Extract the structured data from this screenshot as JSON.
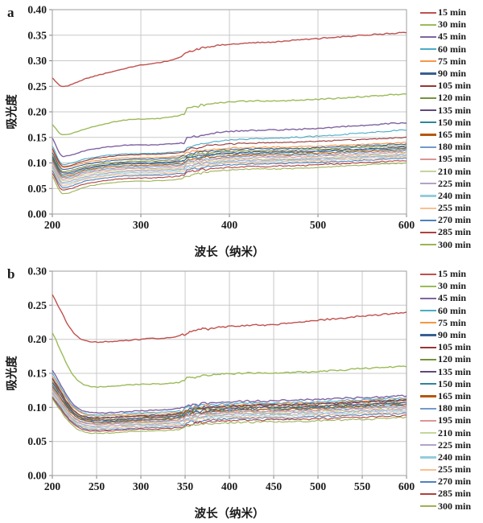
{
  "chart_data": [
    {
      "panel_label": "a",
      "type": "line",
      "xlabel": "波长（纳米）",
      "ylabel": "吸光度",
      "xlim": [
        200,
        600
      ],
      "xticks": [
        200,
        300,
        400,
        500,
        600
      ],
      "ylim": [
        0,
        0.4
      ],
      "ytick_step": 0.05,
      "grid": true,
      "legend_position": "right",
      "anchor_x": [
        200,
        212,
        240,
        290,
        349,
        352,
        460,
        600
      ],
      "series": [
        {
          "name": "15 min",
          "color": "#C0504D",
          "values": [
            0.266,
            0.25,
            0.266,
            0.288,
            0.311,
            0.315,
            0.338,
            0.356
          ]
        },
        {
          "name": "30 min",
          "color": "#9BBB59",
          "values": [
            0.176,
            0.155,
            0.168,
            0.185,
            0.196,
            0.207,
            0.222,
            0.235
          ]
        },
        {
          "name": "45 min",
          "color": "#8064A2",
          "values": [
            0.149,
            0.113,
            0.125,
            0.135,
            0.14,
            0.148,
            0.165,
            0.179
          ]
        },
        {
          "name": "60 min",
          "color": "#4BACC6",
          "values": [
            0.133,
            0.097,
            0.109,
            0.118,
            0.124,
            0.13,
            0.149,
            0.165
          ]
        },
        {
          "name": "75 min",
          "color": "#F79646",
          "values": [
            0.125,
            0.091,
            0.102,
            0.11,
            0.115,
            0.12,
            0.131,
            0.14
          ]
        },
        {
          "name": "90 min",
          "color": "#376092",
          "values": [
            0.12,
            0.087,
            0.098,
            0.107,
            0.112,
            0.117,
            0.128,
            0.137
          ]
        },
        {
          "name": "105 min",
          "color": "#953735",
          "values": [
            0.128,
            0.093,
            0.106,
            0.116,
            0.122,
            0.127,
            0.14,
            0.15
          ]
        },
        {
          "name": "120 min",
          "color": "#76923C",
          "values": [
            0.115,
            0.083,
            0.094,
            0.103,
            0.108,
            0.113,
            0.125,
            0.134
          ]
        },
        {
          "name": "135 min",
          "color": "#5F497A",
          "values": [
            0.112,
            0.08,
            0.091,
            0.1,
            0.105,
            0.11,
            0.122,
            0.131
          ]
        },
        {
          "name": "150 min",
          "color": "#31849B",
          "values": [
            0.109,
            0.077,
            0.089,
            0.098,
            0.103,
            0.108,
            0.12,
            0.129
          ]
        },
        {
          "name": "165 min",
          "color": "#B65708",
          "values": [
            0.106,
            0.074,
            0.086,
            0.095,
            0.1,
            0.105,
            0.117,
            0.126
          ]
        },
        {
          "name": "180 min",
          "color": "#729ACA",
          "values": [
            0.103,
            0.071,
            0.083,
            0.092,
            0.097,
            0.102,
            0.114,
            0.124
          ]
        },
        {
          "name": "195 min",
          "color": "#D99694",
          "values": [
            0.1,
            0.068,
            0.08,
            0.089,
            0.094,
            0.099,
            0.111,
            0.121
          ]
        },
        {
          "name": "210 min",
          "color": "#C3D69B",
          "values": [
            0.097,
            0.065,
            0.077,
            0.086,
            0.091,
            0.096,
            0.108,
            0.118
          ]
        },
        {
          "name": "225 min",
          "color": "#B3A2C7",
          "values": [
            0.094,
            0.062,
            0.074,
            0.084,
            0.089,
            0.094,
            0.106,
            0.116
          ]
        },
        {
          "name": "240 min",
          "color": "#93CDDD",
          "values": [
            0.091,
            0.059,
            0.071,
            0.081,
            0.086,
            0.091,
            0.104,
            0.114
          ]
        },
        {
          "name": "255 min",
          "color": "#FAC090",
          "values": [
            0.088,
            0.056,
            0.069,
            0.078,
            0.084,
            0.089,
            0.102,
            0.112
          ]
        },
        {
          "name": "270 min",
          "color": "#4F81BD",
          "values": [
            0.085,
            0.052,
            0.065,
            0.075,
            0.081,
            0.086,
            0.099,
            0.109
          ]
        },
        {
          "name": "285 min",
          "color": "#B0413E",
          "values": [
            0.08,
            0.047,
            0.06,
            0.07,
            0.076,
            0.081,
            0.094,
            0.105
          ]
        },
        {
          "name": "300 min",
          "color": "#9CB356",
          "values": [
            0.074,
            0.04,
            0.054,
            0.064,
            0.07,
            0.075,
            0.089,
            0.1
          ]
        }
      ]
    },
    {
      "panel_label": "b",
      "type": "line",
      "xlabel": "波长（纳米）",
      "ylabel": "吸光度",
      "xlim": [
        200,
        600
      ],
      "xticks": [
        200,
        250,
        300,
        350,
        400,
        450,
        500,
        550,
        600
      ],
      "ylim": [
        0,
        0.3
      ],
      "ytick_step": 0.05,
      "grid": true,
      "legend_position": "right",
      "anchor_x": [
        200,
        225,
        252,
        300,
        349,
        352,
        460,
        600
      ],
      "series": [
        {
          "name": "15 min",
          "color": "#C0504D",
          "values": [
            0.266,
            0.208,
            0.196,
            0.2,
            0.207,
            0.209,
            0.223,
            0.24
          ]
        },
        {
          "name": "30 min",
          "color": "#9BBB59",
          "values": [
            0.21,
            0.145,
            0.13,
            0.134,
            0.138,
            0.143,
            0.151,
            0.161
          ]
        },
        {
          "name": "45 min",
          "color": "#8064A2",
          "values": [
            0.155,
            0.103,
            0.092,
            0.095,
            0.1,
            0.102,
            0.11,
            0.117
          ]
        },
        {
          "name": "60 min",
          "color": "#4BACC6",
          "values": [
            0.15,
            0.1,
            0.089,
            0.092,
            0.096,
            0.099,
            0.107,
            0.114
          ]
        },
        {
          "name": "75 min",
          "color": "#F79646",
          "values": [
            0.146,
            0.098,
            0.087,
            0.09,
            0.094,
            0.097,
            0.105,
            0.112
          ]
        },
        {
          "name": "90 min",
          "color": "#376092",
          "values": [
            0.143,
            0.095,
            0.085,
            0.088,
            0.093,
            0.096,
            0.104,
            0.111
          ]
        },
        {
          "name": "105 min",
          "color": "#953735",
          "values": [
            0.141,
            0.094,
            0.084,
            0.087,
            0.092,
            0.095,
            0.103,
            0.11
          ]
        },
        {
          "name": "120 min",
          "color": "#76923C",
          "values": [
            0.138,
            0.092,
            0.082,
            0.085,
            0.09,
            0.093,
            0.101,
            0.108
          ]
        },
        {
          "name": "135 min",
          "color": "#5F497A",
          "values": [
            0.136,
            0.091,
            0.081,
            0.084,
            0.089,
            0.092,
            0.1,
            0.107
          ]
        },
        {
          "name": "150 min",
          "color": "#31849B",
          "values": [
            0.133,
            0.089,
            0.079,
            0.082,
            0.087,
            0.09,
            0.098,
            0.105
          ]
        },
        {
          "name": "165 min",
          "color": "#B65708",
          "values": [
            0.131,
            0.088,
            0.078,
            0.081,
            0.086,
            0.089,
            0.097,
            0.104
          ]
        },
        {
          "name": "180 min",
          "color": "#729ACA",
          "values": [
            0.128,
            0.085,
            0.076,
            0.079,
            0.084,
            0.087,
            0.095,
            0.102
          ]
        },
        {
          "name": "195 min",
          "color": "#D99694",
          "values": [
            0.126,
            0.084,
            0.075,
            0.078,
            0.083,
            0.086,
            0.094,
            0.1
          ]
        },
        {
          "name": "210 min",
          "color": "#C3D69B",
          "values": [
            0.124,
            0.082,
            0.073,
            0.076,
            0.081,
            0.084,
            0.092,
            0.098
          ]
        },
        {
          "name": "225 min",
          "color": "#B3A2C7",
          "values": [
            0.122,
            0.081,
            0.072,
            0.075,
            0.08,
            0.083,
            0.091,
            0.097
          ]
        },
        {
          "name": "240 min",
          "color": "#93CDDD",
          "values": [
            0.12,
            0.079,
            0.07,
            0.073,
            0.078,
            0.081,
            0.089,
            0.095
          ]
        },
        {
          "name": "255 min",
          "color": "#FAC090",
          "values": [
            0.118,
            0.078,
            0.069,
            0.072,
            0.076,
            0.079,
            0.087,
            0.093
          ]
        },
        {
          "name": "270 min",
          "color": "#4F81BD",
          "values": [
            0.116,
            0.076,
            0.067,
            0.07,
            0.074,
            0.077,
            0.085,
            0.091
          ]
        },
        {
          "name": "285 min",
          "color": "#B0413E",
          "values": [
            0.114,
            0.074,
            0.065,
            0.068,
            0.072,
            0.075,
            0.082,
            0.088
          ]
        },
        {
          "name": "300 min",
          "color": "#9CB356",
          "values": [
            0.112,
            0.071,
            0.062,
            0.065,
            0.069,
            0.072,
            0.079,
            0.085
          ]
        }
      ]
    }
  ]
}
